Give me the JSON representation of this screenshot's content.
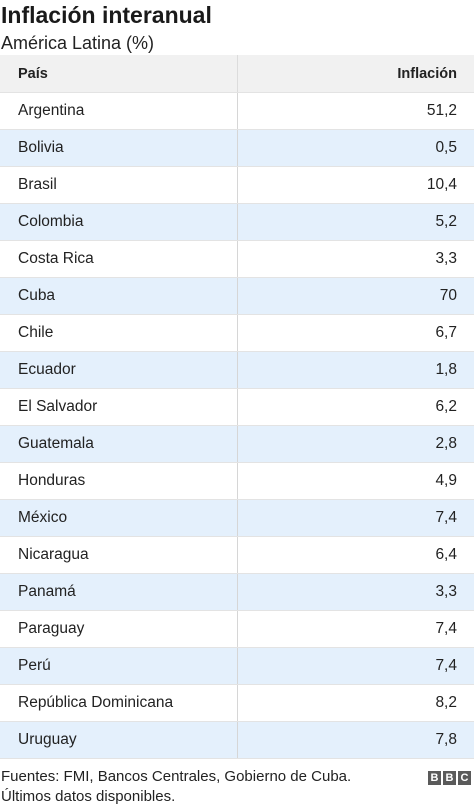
{
  "title": "Inflación interanual",
  "subtitle": "América Latina (%)",
  "chart_data": {
    "type": "table",
    "columns": [
      "País",
      "Inflación"
    ],
    "rows": [
      {
        "country": "Argentina",
        "value": "51,2"
      },
      {
        "country": "Bolivia",
        "value": "0,5"
      },
      {
        "country": "Brasil",
        "value": "10,4"
      },
      {
        "country": "Colombia",
        "value": "5,2"
      },
      {
        "country": "Costa Rica",
        "value": "3,3"
      },
      {
        "country": "Cuba",
        "value": "70"
      },
      {
        "country": "Chile",
        "value": "6,7"
      },
      {
        "country": "Ecuador",
        "value": "1,8"
      },
      {
        "country": "El Salvador",
        "value": "6,2"
      },
      {
        "country": "Guatemala",
        "value": "2,8"
      },
      {
        "country": "Honduras",
        "value": "4,9"
      },
      {
        "country": "México",
        "value": "7,4"
      },
      {
        "country": "Nicaragua",
        "value": "6,4"
      },
      {
        "country": "Panamá",
        "value": "3,3"
      },
      {
        "country": "Paraguay",
        "value": "7,4"
      },
      {
        "country": "Perú",
        "value": "7,4"
      },
      {
        "country": "República Dominicana",
        "value": "8,2"
      },
      {
        "country": "Uruguay",
        "value": "7,8"
      }
    ]
  },
  "footer": {
    "line1": "Fuentes: FMI, Bancos Centrales, Gobierno de Cuba.",
    "line2": "Últimos datos disponibles."
  },
  "logo": {
    "letters": [
      "B",
      "B",
      "C"
    ]
  },
  "colors": {
    "header_bg": "#f1f1f1",
    "alt_row_bg": "#e4f0fc",
    "logo_bg": "#5a5a5a"
  }
}
